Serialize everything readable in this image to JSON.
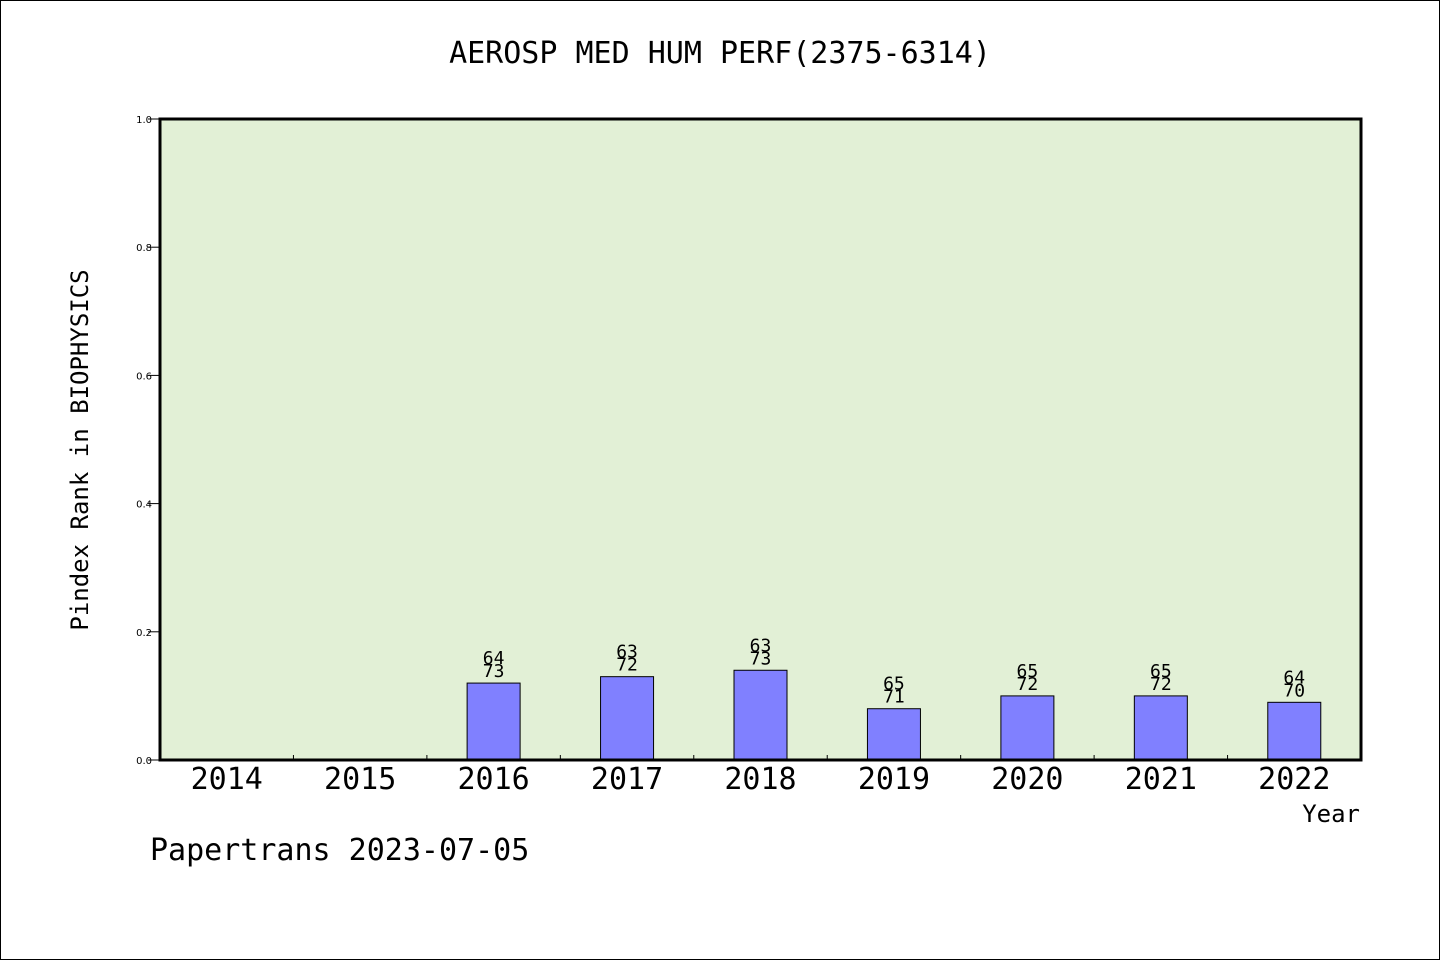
{
  "title": "AEROSP MED HUM PERF(2375-6314)",
  "footer": "Papertrans 2023-07-05",
  "colors": {
    "plot_background": "#e2f0d6",
    "bar_fill": "#8080ff",
    "bar_stroke": "#000000"
  },
  "chart_data": {
    "type": "bar",
    "title": "AEROSP MED HUM PERF(2375-6314)",
    "xlabel": "Year",
    "ylabel": "Pindex Rank in BIOPHYSICS",
    "ylim": [
      0,
      1.0
    ],
    "yticks": [
      "0.0",
      "0.2",
      "0.4",
      "0.6",
      "0.8",
      "1.0"
    ],
    "grid": false,
    "categories": [
      "2014",
      "2015",
      "2016",
      "2017",
      "2018",
      "2019",
      "2020",
      "2021",
      "2022"
    ],
    "values": [
      null,
      null,
      0.12,
      0.13,
      0.14,
      0.08,
      0.1,
      0.1,
      0.09
    ],
    "label_top": [
      null,
      null,
      "64",
      "63",
      "63",
      "65",
      "65",
      "65",
      "64"
    ],
    "label_bottom": [
      null,
      null,
      "73",
      "72",
      "73",
      "71",
      "72",
      "72",
      "70"
    ]
  }
}
